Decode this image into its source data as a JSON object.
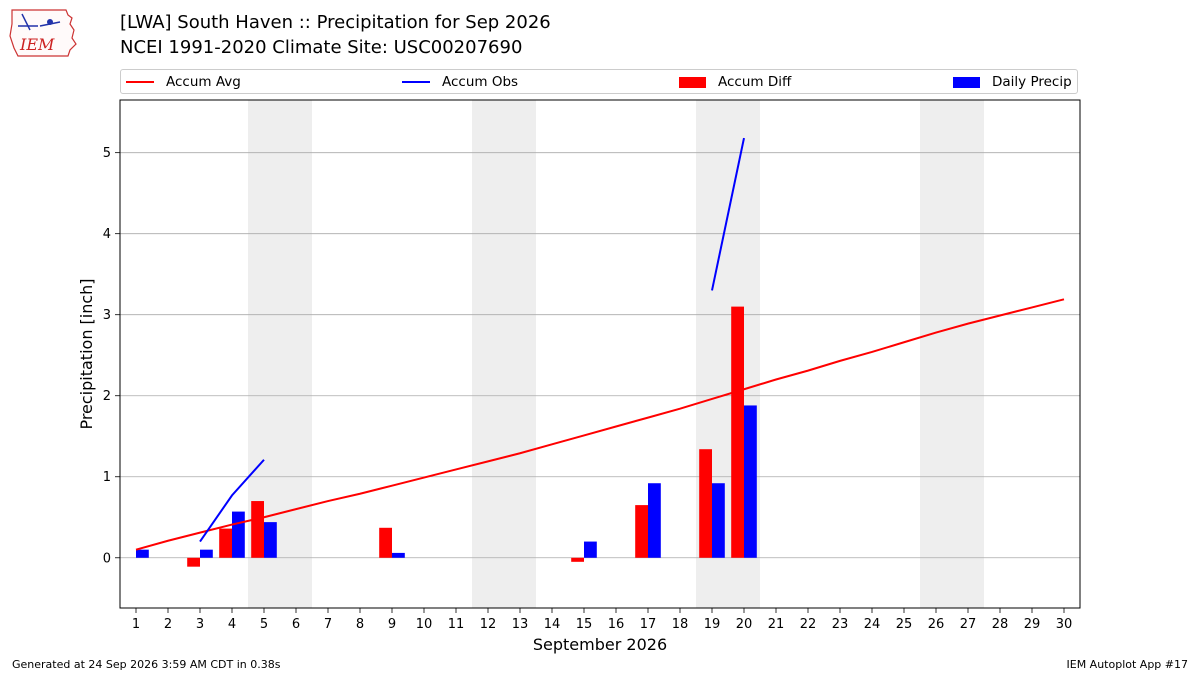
{
  "header": {
    "title": "[LWA] South Haven :: Precipitation for Sep 2026",
    "subtitle": "NCEI 1991-2020 Climate Site: USC00207690",
    "logo_text": "IEM"
  },
  "footer": {
    "left": "Generated at 24 Sep 2026 3:59 AM CDT in 0.38s",
    "right": "IEM Autoplot App #17"
  },
  "colors": {
    "avg": "#ff0000",
    "obs": "#0000ff",
    "diff": "#ff0000",
    "precip": "#0000ff",
    "weekend": "#eeeeee",
    "grid": "#aaaaaa"
  },
  "chart_data": {
    "type": "bar",
    "xlabel": "September 2026",
    "ylabel": "Precipitation [inch]",
    "xlim": [
      0.5,
      30.5
    ],
    "ylim": [
      -0.62,
      5.65
    ],
    "yticks": [
      0,
      1,
      2,
      3,
      4,
      5
    ],
    "days": [
      1,
      2,
      3,
      4,
      5,
      6,
      7,
      8,
      9,
      10,
      11,
      12,
      13,
      14,
      15,
      16,
      17,
      18,
      19,
      20,
      21,
      22,
      23,
      24,
      25,
      26,
      27,
      28,
      29,
      30
    ],
    "weekend_spans": [
      [
        5,
        6
      ],
      [
        12,
        13
      ],
      [
        19,
        20
      ],
      [
        26,
        27
      ]
    ],
    "legend": [
      "Accum Avg",
      "Accum Obs",
      "Accum Diff",
      "Daily Precip"
    ],
    "series": [
      {
        "name": "Accum Avg",
        "type": "line",
        "x": [
          1,
          2,
          3,
          4,
          5,
          6,
          7,
          8,
          9,
          10,
          11,
          12,
          13,
          14,
          15,
          16,
          17,
          18,
          19,
          20,
          21,
          22,
          23,
          24,
          25,
          26,
          27,
          28,
          29,
          30
        ],
        "values": [
          0.1,
          0.21,
          0.31,
          0.41,
          0.5,
          0.6,
          0.7,
          0.79,
          0.89,
          0.99,
          1.09,
          1.19,
          1.29,
          1.4,
          1.51,
          1.62,
          1.73,
          1.84,
          1.96,
          2.08,
          2.2,
          2.31,
          2.43,
          2.54,
          2.66,
          2.78,
          2.89,
          2.99,
          3.09,
          3.19
        ]
      },
      {
        "name": "Accum Obs",
        "type": "line",
        "segments": [
          {
            "x": [
              3,
              4,
              5
            ],
            "values": [
              0.2,
              0.77,
              1.21
            ]
          },
          {
            "x": [
              19,
              20
            ],
            "values": [
              3.3,
              5.18
            ]
          }
        ]
      },
      {
        "name": "Accum Diff",
        "type": "bar",
        "x": [
          3,
          4,
          5,
          9,
          15,
          17,
          19,
          20
        ],
        "values": [
          -0.11,
          0.36,
          0.7,
          0.37,
          -0.05,
          0.65,
          1.34,
          3.1
        ]
      },
      {
        "name": "Daily Precip",
        "type": "bar",
        "x": [
          1,
          3,
          4,
          5,
          9,
          15,
          17,
          19,
          20
        ],
        "values": [
          0.1,
          0.1,
          0.57,
          0.44,
          0.06,
          0.2,
          0.92,
          0.92,
          1.88
        ]
      }
    ]
  }
}
